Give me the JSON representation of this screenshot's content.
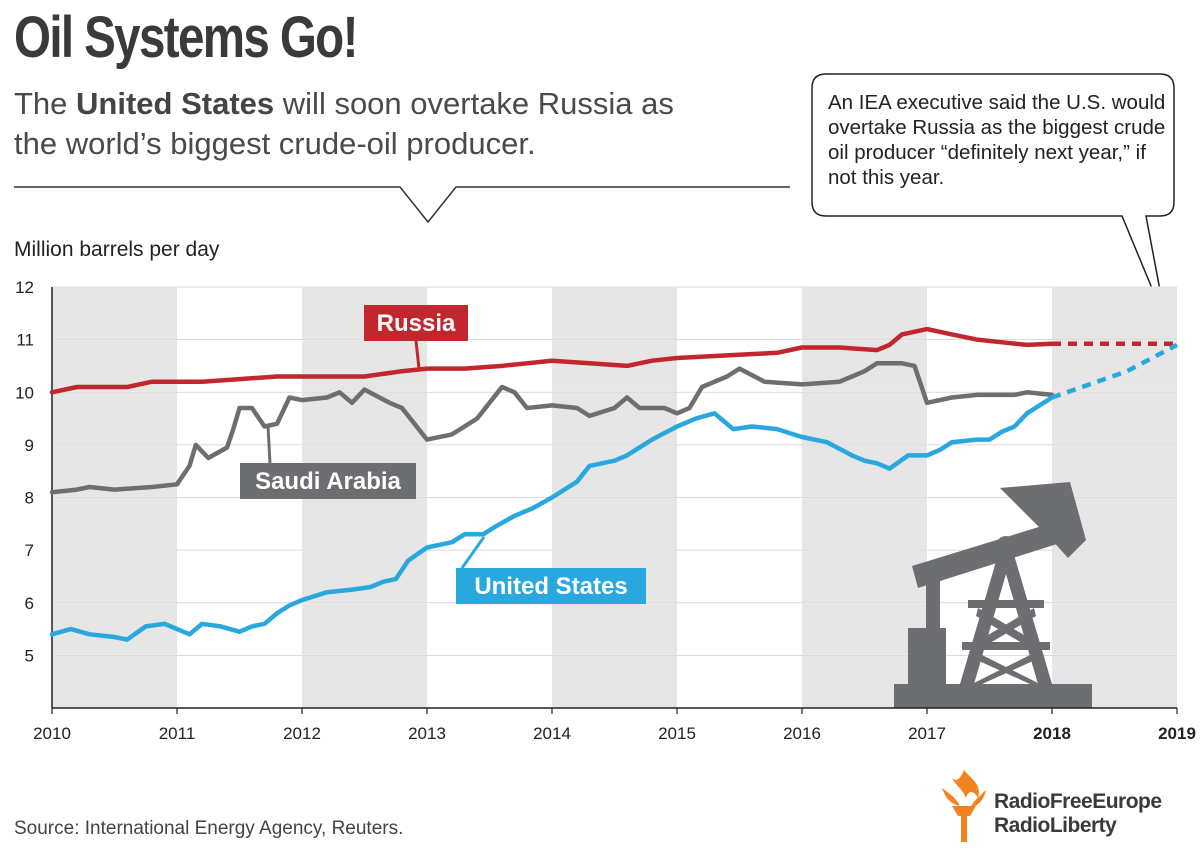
{
  "header": {
    "title": "Oil Systems Go!",
    "subtitle_before": "The",
    "subtitle_bold": "United States",
    "subtitle_after": "will soon overtake Russia as the world’s biggest crude-oil producer."
  },
  "callout": {
    "text": "An IEA executive said the U.S. would overtake Russia as the biggest crude oil producer “definitely next year,” if not this year."
  },
  "source": "Source: International Energy Agency, Reuters.",
  "logo": {
    "line1": "RadioFreeEurope",
    "line2": "RadioLiberty"
  },
  "colors": {
    "russia": "#c1272d",
    "saudi": "#6d6e71",
    "us": "#29a8e0",
    "band": "#e6e6e6",
    "pump": "#6d6e71"
  },
  "icons": {
    "pump": "oil-pumpjack-icon",
    "logo": "rfe-rl-torch-icon"
  },
  "chart_data": {
    "type": "line",
    "ylabel": "Million barrels per day",
    "xlim": [
      2010,
      2019
    ],
    "ylim": [
      4,
      12
    ],
    "x_ticks": [
      "2010",
      "2011",
      "2012",
      "2013",
      "2014",
      "2015",
      "2016",
      "2017",
      "2018",
      "2019"
    ],
    "y_ticks": [
      "5",
      "6",
      "7",
      "8",
      "9",
      "10",
      "11",
      "12"
    ],
    "grid": "alternating vertical year bands",
    "series": [
      {
        "name": "Russia",
        "color": "#c1272d",
        "points": [
          [
            2010,
            10.0
          ],
          [
            2010.2,
            10.1
          ],
          [
            2010.4,
            10.1
          ],
          [
            2010.6,
            10.1
          ],
          [
            2010.8,
            10.2
          ],
          [
            2011,
            10.2
          ],
          [
            2011.2,
            10.2
          ],
          [
            2011.5,
            10.25
          ],
          [
            2011.8,
            10.3
          ],
          [
            2012,
            10.3
          ],
          [
            2012.5,
            10.3
          ],
          [
            2012.8,
            10.4
          ],
          [
            2013,
            10.45
          ],
          [
            2013.3,
            10.45
          ],
          [
            2013.6,
            10.5
          ],
          [
            2014,
            10.6
          ],
          [
            2014.3,
            10.55
          ],
          [
            2014.6,
            10.5
          ],
          [
            2014.8,
            10.6
          ],
          [
            2015,
            10.65
          ],
          [
            2015.4,
            10.7
          ],
          [
            2015.8,
            10.75
          ],
          [
            2016,
            10.85
          ],
          [
            2016.3,
            10.85
          ],
          [
            2016.6,
            10.8
          ],
          [
            2016.7,
            10.9
          ],
          [
            2016.8,
            11.1
          ],
          [
            2017,
            11.2
          ],
          [
            2017.2,
            11.1
          ],
          [
            2017.4,
            11.0
          ],
          [
            2017.6,
            10.95
          ],
          [
            2017.8,
            10.9
          ],
          [
            2018,
            10.92
          ]
        ],
        "forecast": [
          [
            2018,
            10.92
          ],
          [
            2019,
            10.92
          ]
        ]
      },
      {
        "name": "Saudi Arabia",
        "color": "#6d6e71",
        "points": [
          [
            2010,
            8.1
          ],
          [
            2010.2,
            8.15
          ],
          [
            2010.3,
            8.2
          ],
          [
            2010.5,
            8.15
          ],
          [
            2010.8,
            8.2
          ],
          [
            2011,
            8.25
          ],
          [
            2011.1,
            8.6
          ],
          [
            2011.15,
            9.0
          ],
          [
            2011.25,
            8.75
          ],
          [
            2011.4,
            8.95
          ],
          [
            2011.45,
            9.3
          ],
          [
            2011.5,
            9.7
          ],
          [
            2011.6,
            9.7
          ],
          [
            2011.7,
            9.35
          ],
          [
            2011.8,
            9.4
          ],
          [
            2011.9,
            9.9
          ],
          [
            2012,
            9.85
          ],
          [
            2012.2,
            9.9
          ],
          [
            2012.3,
            10.0
          ],
          [
            2012.4,
            9.8
          ],
          [
            2012.5,
            10.05
          ],
          [
            2012.7,
            9.8
          ],
          [
            2012.8,
            9.7
          ],
          [
            2012.9,
            9.4
          ],
          [
            2013,
            9.1
          ],
          [
            2013.2,
            9.2
          ],
          [
            2013.4,
            9.5
          ],
          [
            2013.5,
            9.8
          ],
          [
            2013.6,
            10.1
          ],
          [
            2013.7,
            10.0
          ],
          [
            2013.8,
            9.7
          ],
          [
            2014,
            9.75
          ],
          [
            2014.2,
            9.7
          ],
          [
            2014.3,
            9.55
          ],
          [
            2014.5,
            9.7
          ],
          [
            2014.6,
            9.9
          ],
          [
            2014.7,
            9.7
          ],
          [
            2014.9,
            9.7
          ],
          [
            2015,
            9.6
          ],
          [
            2015.1,
            9.7
          ],
          [
            2015.2,
            10.1
          ],
          [
            2015.4,
            10.3
          ],
          [
            2015.5,
            10.45
          ],
          [
            2015.7,
            10.2
          ],
          [
            2016,
            10.15
          ],
          [
            2016.3,
            10.2
          ],
          [
            2016.4,
            10.3
          ],
          [
            2016.5,
            10.4
          ],
          [
            2016.6,
            10.55
          ],
          [
            2016.8,
            10.55
          ],
          [
            2016.9,
            10.5
          ],
          [
            2017,
            9.8
          ],
          [
            2017.2,
            9.9
          ],
          [
            2017.4,
            9.95
          ],
          [
            2017.6,
            9.95
          ],
          [
            2017.7,
            9.95
          ],
          [
            2017.8,
            10.0
          ],
          [
            2018,
            9.95
          ]
        ]
      },
      {
        "name": "United States",
        "color": "#29a8e0",
        "points": [
          [
            2010,
            5.4
          ],
          [
            2010.15,
            5.5
          ],
          [
            2010.3,
            5.4
          ],
          [
            2010.5,
            5.35
          ],
          [
            2010.6,
            5.3
          ],
          [
            2010.75,
            5.55
          ],
          [
            2010.9,
            5.6
          ],
          [
            2011,
            5.5
          ],
          [
            2011.1,
            5.4
          ],
          [
            2011.2,
            5.6
          ],
          [
            2011.35,
            5.55
          ],
          [
            2011.5,
            5.45
          ],
          [
            2011.6,
            5.55
          ],
          [
            2011.7,
            5.6
          ],
          [
            2011.8,
            5.8
          ],
          [
            2011.9,
            5.95
          ],
          [
            2012,
            6.05
          ],
          [
            2012.2,
            6.2
          ],
          [
            2012.4,
            6.25
          ],
          [
            2012.55,
            6.3
          ],
          [
            2012.65,
            6.4
          ],
          [
            2012.75,
            6.45
          ],
          [
            2012.85,
            6.8
          ],
          [
            2013,
            7.05
          ],
          [
            2013.2,
            7.15
          ],
          [
            2013.3,
            7.3
          ],
          [
            2013.45,
            7.3
          ],
          [
            2013.55,
            7.45
          ],
          [
            2013.7,
            7.65
          ],
          [
            2013.85,
            7.8
          ],
          [
            2014,
            8.0
          ],
          [
            2014.2,
            8.3
          ],
          [
            2014.3,
            8.6
          ],
          [
            2014.5,
            8.7
          ],
          [
            2014.6,
            8.8
          ],
          [
            2014.8,
            9.1
          ],
          [
            2015,
            9.35
          ],
          [
            2015.15,
            9.5
          ],
          [
            2015.3,
            9.6
          ],
          [
            2015.45,
            9.3
          ],
          [
            2015.6,
            9.35
          ],
          [
            2015.8,
            9.3
          ],
          [
            2016,
            9.15
          ],
          [
            2016.2,
            9.05
          ],
          [
            2016.4,
            8.8
          ],
          [
            2016.5,
            8.7
          ],
          [
            2016.6,
            8.65
          ],
          [
            2016.7,
            8.55
          ],
          [
            2016.85,
            8.8
          ],
          [
            2017,
            8.8
          ],
          [
            2017.1,
            8.9
          ],
          [
            2017.2,
            9.05
          ],
          [
            2017.4,
            9.1
          ],
          [
            2017.5,
            9.1
          ],
          [
            2017.6,
            9.25
          ],
          [
            2017.7,
            9.35
          ],
          [
            2017.8,
            9.6
          ],
          [
            2018,
            9.9
          ]
        ],
        "forecast": [
          [
            2018,
            9.9
          ],
          [
            2018.3,
            10.15
          ],
          [
            2018.6,
            10.4
          ],
          [
            2019,
            10.9
          ]
        ]
      }
    ]
  }
}
